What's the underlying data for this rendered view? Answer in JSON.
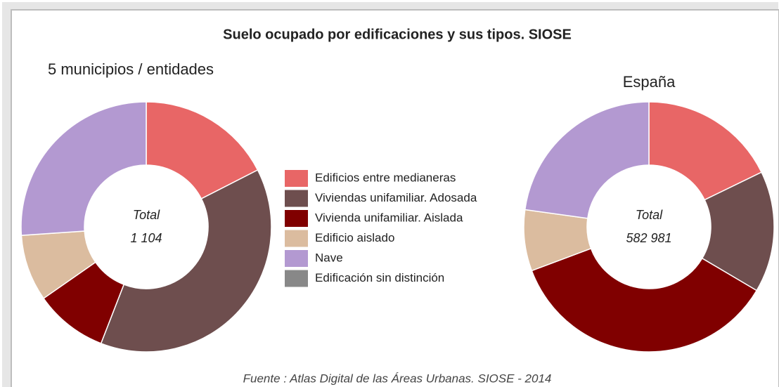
{
  "title": "Suelo ocupado por edificaciones y sus tipos. SIOSE",
  "source": "Fuente : Atlas Digital de las Áreas Urbanas. SIOSE - 2014",
  "chart_data": [
    {
      "type": "donut",
      "title": "5 municipios / entidades",
      "center_label": "Total",
      "center_value": "1 104",
      "categories": [
        "Edificios entre medianeras",
        "Viviendas unifamiliar. Adosada",
        "Vivienda unifamiliar. Aislada",
        "Edificio aislado",
        "Nave",
        "Edificación sin distinción"
      ],
      "values": [
        193,
        424,
        104,
        95,
        288,
        0
      ],
      "colors": [
        "#e86666",
        "#6e4e4e",
        "#800000",
        "#dbbc9f",
        "#b399d1",
        "#888888"
      ]
    },
    {
      "type": "donut",
      "title": "España",
      "center_label": "Total",
      "center_value": "582 981",
      "categories": [
        "Edificios entre medianeras",
        "Viviendas unifamiliar. Adosada",
        "Vivienda unifamiliar. Aislada",
        "Edificio aislado",
        "Nave",
        "Edificación sin distinción"
      ],
      "values": [
        103771,
        91528,
        208707,
        46055,
        132920,
        0
      ],
      "colors": [
        "#e86666",
        "#6e4e4e",
        "#800000",
        "#dbbc9f",
        "#b399d1",
        "#888888"
      ]
    }
  ]
}
